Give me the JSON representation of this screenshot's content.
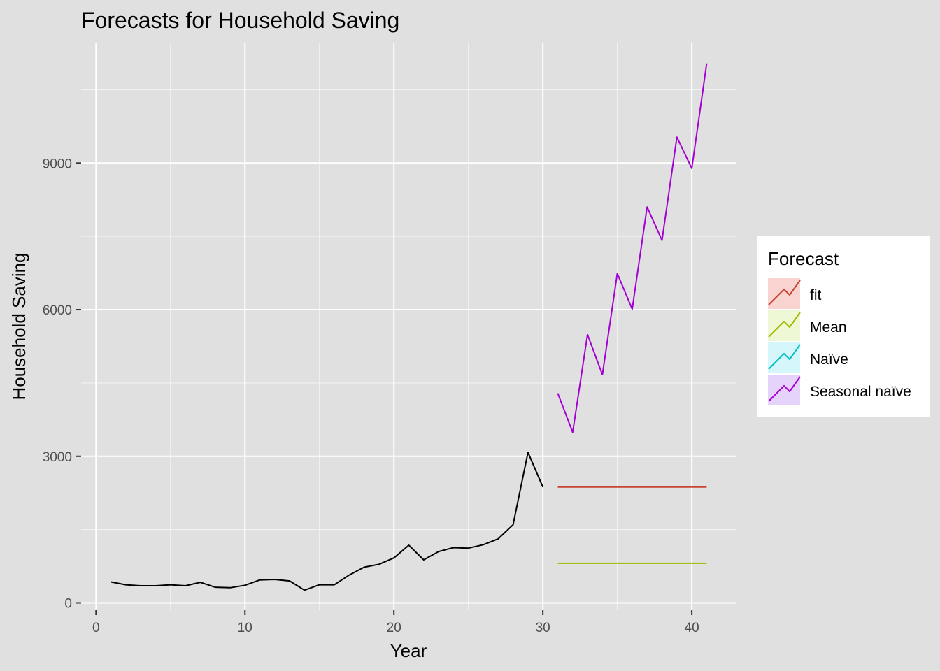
{
  "chart_data": {
    "type": "line",
    "title": "Forecasts for Household Saving",
    "xlabel": "Year",
    "ylabel": "Household Saving",
    "xlim": [
      -1,
      43
    ],
    "ylim": [
      -150,
      11450
    ],
    "x_ticks": [
      0,
      10,
      20,
      30,
      40
    ],
    "x_tick_labels": [
      "0",
      "10",
      "20",
      "30",
      "40"
    ],
    "y_ticks": [
      0,
      3000,
      6000,
      9000
    ],
    "y_tick_labels": [
      "0",
      "3000",
      "6000",
      "9000"
    ],
    "grid": true,
    "legend_position": "right",
    "legend_title": "Forecast",
    "history": {
      "color": "#000000",
      "x": [
        1,
        2,
        3,
        4,
        5,
        6,
        7,
        8,
        9,
        10,
        11,
        12,
        13,
        14,
        15,
        16,
        17,
        18,
        19,
        20,
        21,
        22,
        23,
        24,
        25,
        26,
        27,
        28,
        29,
        30
      ],
      "y": [
        430,
        370,
        350,
        350,
        370,
        350,
        420,
        320,
        310,
        360,
        470,
        480,
        450,
        260,
        370,
        370,
        570,
        730,
        790,
        920,
        1180,
        880,
        1050,
        1130,
        1120,
        1190,
        1310,
        1600,
        3080,
        2370
      ]
    },
    "series": [
      {
        "name": "fit",
        "color": "#c8442f",
        "fill": "#f8d3cf",
        "x": [
          31,
          41
        ],
        "y": [
          2370,
          2370
        ]
      },
      {
        "name": "Mean",
        "color": "#a3b800",
        "fill": "#eef8d4",
        "x": [
          31,
          41
        ],
        "y": [
          810,
          810
        ]
      },
      {
        "name": "Naïve",
        "color": "#00bfc4",
        "fill": "#d5f6fa",
        "x": [],
        "y": []
      },
      {
        "name": "Seasonal naïve",
        "color": "#a300d4",
        "fill": "#e6d3fb",
        "x": [
          31,
          32,
          33,
          34,
          35,
          36,
          37,
          38,
          39,
          40,
          41
        ],
        "y": [
          4290,
          3490,
          5490,
          4670,
          6740,
          6010,
          8100,
          7420,
          9530,
          8890,
          11040
        ]
      }
    ]
  }
}
